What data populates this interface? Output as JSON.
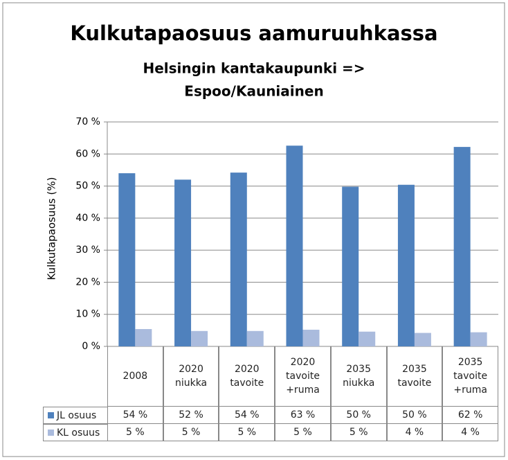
{
  "chart_data": {
    "type": "bar",
    "title": "Kulkutapaosuus aamuruuhkassa",
    "subtitle": [
      "Helsingin kantakaupunki =>",
      "Espoo/Kauniainen"
    ],
    "y_label": "Kulkutapaosuus (%)",
    "categories": [
      "2008",
      "2020\nniukka",
      "2020\ntavoite",
      "2020\ntavoite\n+ruma",
      "2035\nniukka",
      "2035\ntavoite",
      "2035\ntavoite\n+ruma"
    ],
    "series": [
      {
        "name": "JL osuus",
        "color": "#4f81bd",
        "values": [
          54,
          52,
          54.2,
          62.6,
          49.8,
          50.4,
          62.2
        ],
        "value_labels": [
          "54 %",
          "52 %",
          "54 %",
          "63 %",
          "50 %",
          "50 %",
          "62 %"
        ]
      },
      {
        "name": "KL osuus",
        "color": "#aabbdd",
        "values": [
          5.4,
          4.8,
          4.8,
          5.2,
          4.6,
          4.2,
          4.4
        ],
        "value_labels": [
          "5 %",
          "5 %",
          "5 %",
          "5 %",
          "5 %",
          "4 %",
          "4 %"
        ]
      }
    ],
    "ylim": [
      0,
      70
    ],
    "yticks": [
      {
        "value": 0,
        "label": "0 %"
      },
      {
        "value": 10,
        "label": "10 %"
      },
      {
        "value": 20,
        "label": "20 %"
      },
      {
        "value": 30,
        "label": "30 %"
      },
      {
        "value": 40,
        "label": "40 %"
      },
      {
        "value": 50,
        "label": "50 %"
      },
      {
        "value": 60,
        "label": "60 %"
      },
      {
        "value": 70,
        "label": "70 %"
      }
    ],
    "grid": true
  }
}
